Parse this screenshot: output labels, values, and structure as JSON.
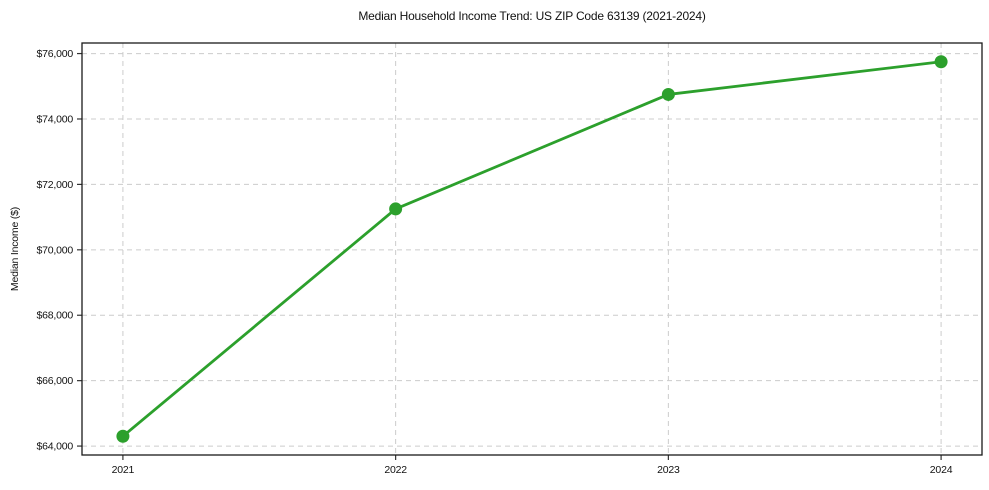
{
  "chart_data": {
    "type": "line",
    "title": "Median Household Income Trend: US ZIP Code 63139 (2021-2024)",
    "xlabel": "",
    "ylabel": "Median Income ($)",
    "x": [
      2021,
      2022,
      2023,
      2024
    ],
    "series": [
      {
        "name": "Median Household Income",
        "values": [
          64300,
          71250,
          74750,
          75750
        ]
      }
    ],
    "x_ticks": [
      {
        "value": 2021,
        "label": "2021"
      },
      {
        "value": 2022,
        "label": "2022"
      },
      {
        "value": 2023,
        "label": "2023"
      },
      {
        "value": 2024,
        "label": "2024"
      }
    ],
    "y_ticks": [
      {
        "value": 64000,
        "label": "$64,000"
      },
      {
        "value": 66000,
        "label": "$66,000"
      },
      {
        "value": 68000,
        "label": "$68,000"
      },
      {
        "value": 70000,
        "label": "$70,000"
      },
      {
        "value": 72000,
        "label": "$72,000"
      },
      {
        "value": 74000,
        "label": "$74,000"
      },
      {
        "value": 76000,
        "label": "$76,000"
      }
    ],
    "xlim": [
      2020.85,
      2024.15
    ],
    "ylim": [
      63727,
      76323
    ],
    "grid": true,
    "grid_style": "dashed",
    "legend": false,
    "colors": {
      "line": "#2ca02c",
      "marker": "#2ca02c",
      "grid": "#cccccc",
      "spine": "#1a1a1a",
      "tick": "#333333",
      "text": "#111111",
      "background": "#ffffff"
    },
    "marker_radius": 6.5,
    "line_width": 2.8
  }
}
